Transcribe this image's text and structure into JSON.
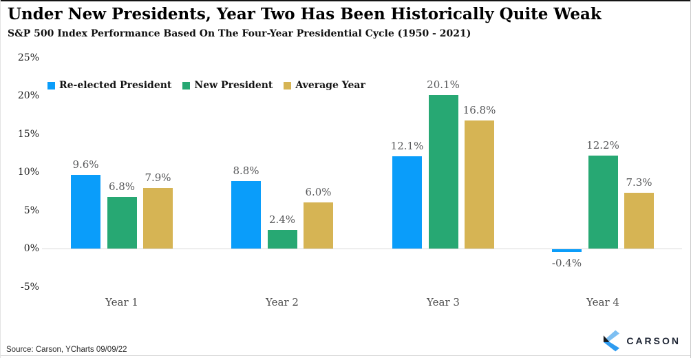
{
  "page": {
    "title": "Under New Presidents, Year Two Has Been Historically Quite Weak",
    "subtitle": "S&P 500 Index Performance Based On The Four-Year Presidential Cycle (1950 - 2021)",
    "source": "Source: Carson, YCharts 09/09/22",
    "brand": "CARSON"
  },
  "chart_data": {
    "type": "bar",
    "title": "Under New Presidents, Year Two Has Been Historically Quite Weak",
    "subtitle": "S&P 500 Index Performance Based On The Four-Year Presidential Cycle (1950 - 2021)",
    "categories": [
      "Year 1",
      "Year 2",
      "Year 3",
      "Year 4"
    ],
    "series": [
      {
        "name": "Re-elected President",
        "color": "#0a9dfa",
        "values": [
          9.6,
          8.8,
          12.1,
          -0.4
        ],
        "labels": [
          "9.6%",
          "8.8%",
          "12.1%",
          "-0.4%"
        ]
      },
      {
        "name": "New President",
        "color": "#27a873",
        "values": [
          6.8,
          2.4,
          20.1,
          12.2
        ],
        "labels": [
          "6.8%",
          "2.4%",
          "20.1%",
          "12.2%"
        ]
      },
      {
        "name": "Average Year",
        "color": "#d6b454",
        "values": [
          7.9,
          6.0,
          16.8,
          7.3
        ],
        "labels": [
          "7.9%",
          "6.0%",
          "16.8%",
          "7.3%"
        ]
      }
    ],
    "ylim": [
      -5,
      25
    ],
    "yticks": [
      25,
      20,
      15,
      10,
      5,
      0,
      -5
    ],
    "ytick_labels": [
      "25%",
      "20%",
      "15%",
      "10%",
      "5%",
      "0%",
      "-5%"
    ],
    "grid": "zero-line-only",
    "legend_position": "top-left-inside"
  }
}
